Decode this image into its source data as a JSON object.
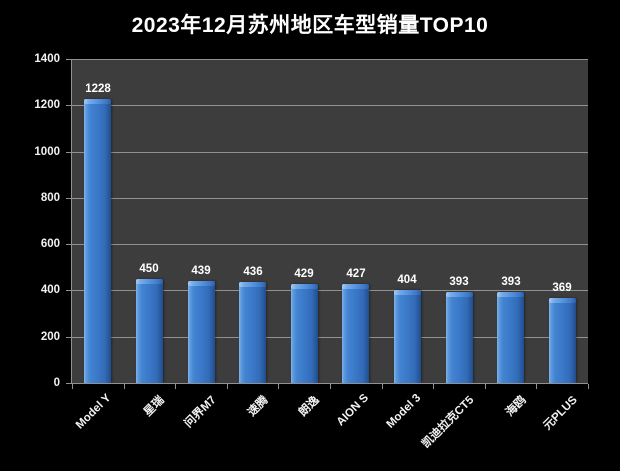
{
  "page": {
    "background": "#000000"
  },
  "chart_data": {
    "type": "bar",
    "title": "2023年12月苏州地区车型销量TOP10",
    "categories": [
      "Model Y",
      "星瑞",
      "问界M7",
      "速腾",
      "朗逸",
      "AION S",
      "Model 3",
      "凯迪拉克CT5",
      "海鸥",
      "元PLUS"
    ],
    "values": [
      1228,
      450,
      439,
      436,
      429,
      427,
      404,
      393,
      393,
      369
    ],
    "xlabel": "",
    "ylabel": "",
    "ylim": [
      0,
      1400
    ],
    "yticks": [
      0,
      200,
      400,
      600,
      800,
      1000,
      1200,
      1400
    ],
    "grid": true,
    "legend": false,
    "data_labels": true,
    "x_label_rotation_deg": 45,
    "colors": {
      "background": "#000000",
      "plot_background": "#3d3d3d",
      "gridline": "#8f9193",
      "axis": "#8f9193",
      "bar_main": "#3a78c8",
      "bar_highlight": "#85b4ea",
      "bar_shadow": "#1f4d8c",
      "text": "#ffffff"
    }
  }
}
